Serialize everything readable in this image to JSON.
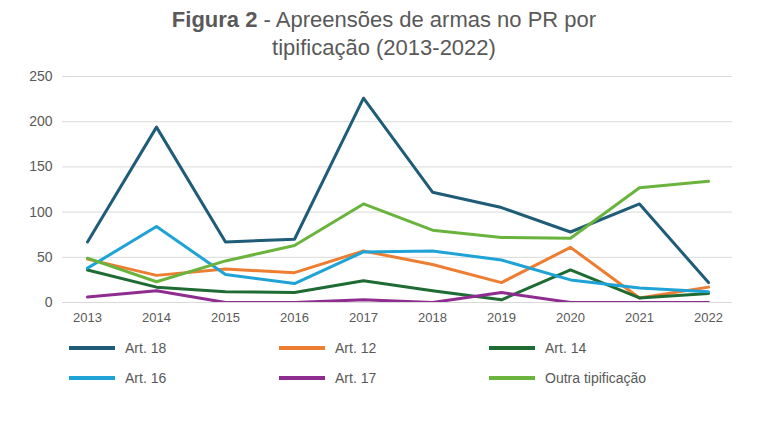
{
  "chart_data": {
    "type": "line",
    "title": "Figura 2 - Apreensões de armas no PR por tipificação (2013-2022)",
    "categories": [
      "2013",
      "2014",
      "2015",
      "2016",
      "2017",
      "2018",
      "2019",
      "2020",
      "2021",
      "2022"
    ],
    "series": [
      {
        "name": "Art. 18",
        "color": "#1f5c78",
        "values": [
          67,
          194,
          67,
          70,
          226,
          122,
          105,
          78,
          109,
          22
        ]
      },
      {
        "name": "Art. 12",
        "color": "#ed7d31",
        "values": [
          48,
          30,
          37,
          33,
          57,
          42,
          22,
          61,
          5,
          17
        ]
      },
      {
        "name": "Art. 14",
        "color": "#1e6b34",
        "values": [
          36,
          17,
          12,
          11,
          24,
          13,
          3,
          36,
          5,
          10
        ]
      },
      {
        "name": "Art. 16",
        "color": "#1fa3d6",
        "values": [
          38,
          84,
          31,
          21,
          56,
          57,
          47,
          25,
          16,
          12
        ]
      },
      {
        "name": "Art. 17",
        "color": "#8e2d8f",
        "values": [
          6,
          13,
          0,
          0,
          3,
          0,
          11,
          0,
          0,
          0
        ]
      },
      {
        "name": "Outra tipificação",
        "color": "#6ab43e",
        "values": [
          49,
          23,
          46,
          63,
          109,
          80,
          72,
          71,
          127,
          134
        ]
      }
    ],
    "ylim": [
      0,
      250
    ],
    "yticks": [
      0,
      50,
      100,
      150,
      200,
      250
    ],
    "grid": true,
    "legend": "bottom"
  }
}
